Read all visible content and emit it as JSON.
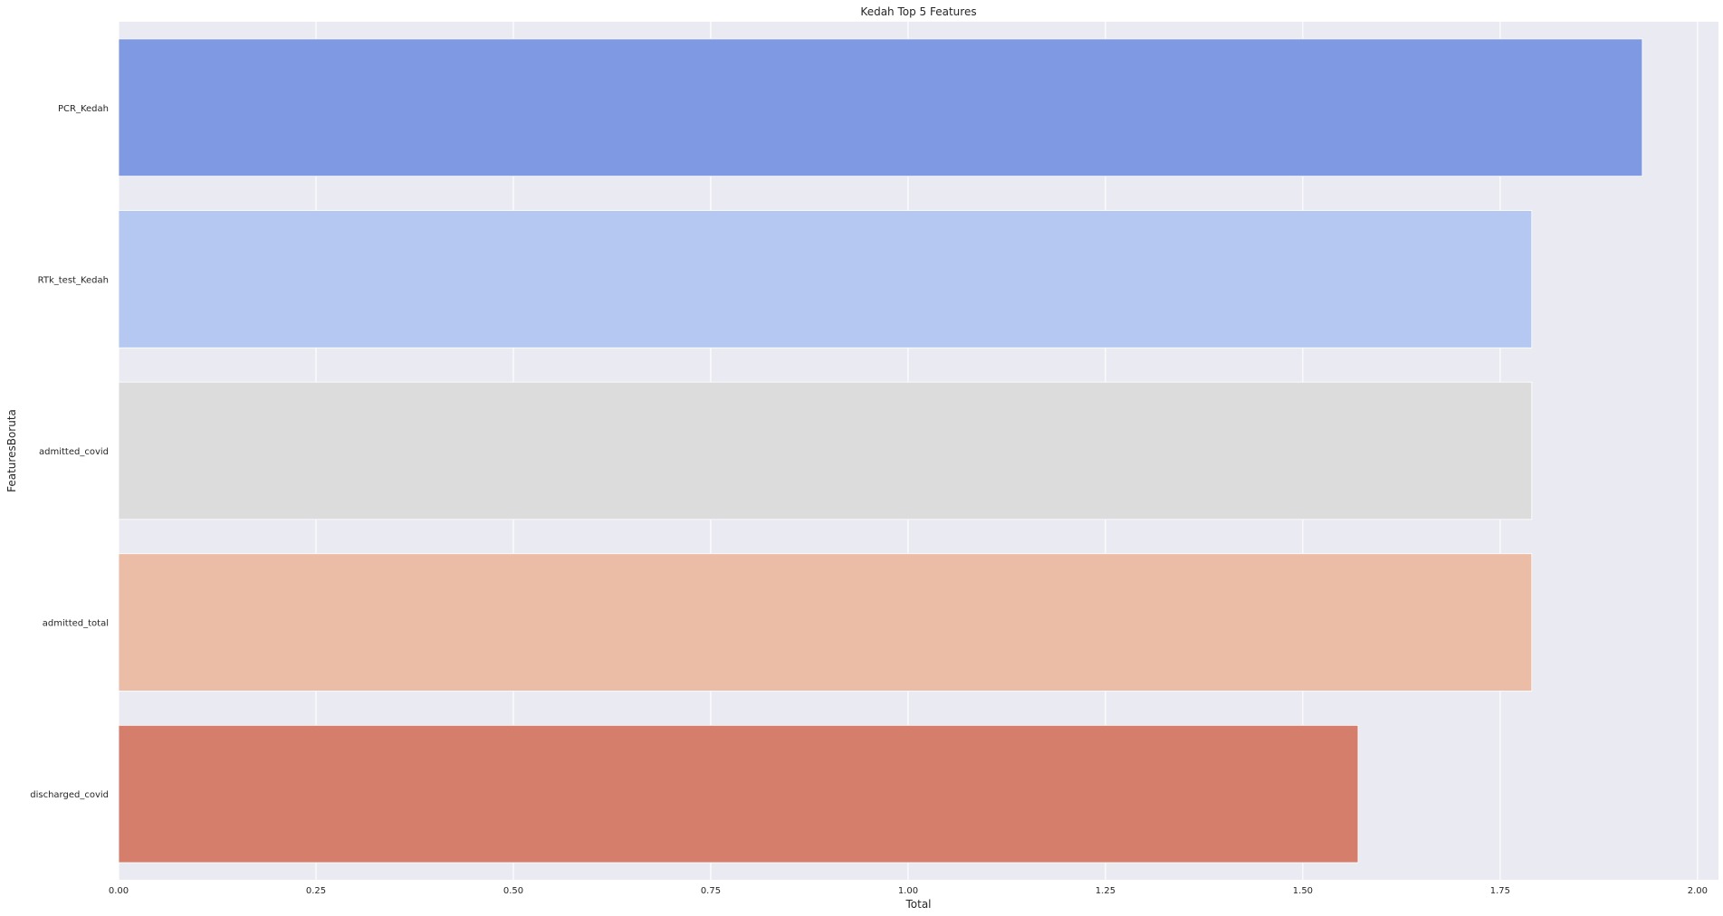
{
  "chart_data": {
    "type": "bar",
    "orientation": "horizontal",
    "title": "Kedah Top 5 Features",
    "xlabel": "Total",
    "ylabel": "FeaturesBoruta",
    "categories": [
      "PCR_Kedah",
      "RTk_test_Kedah",
      "admitted_covid",
      "admitted_total",
      "discharged_covid"
    ],
    "values": [
      1.93,
      1.79,
      1.79,
      1.79,
      1.57
    ],
    "bar_colors": [
      "#7f99e2",
      "#b5c8f2",
      "#dcdcdc",
      "#ebbca6",
      "#d57e6c"
    ],
    "xlim": [
      0,
      2.0265
    ],
    "xticks": [
      0.0,
      0.25,
      0.5,
      0.75,
      1.0,
      1.25,
      1.5,
      1.75,
      2.0
    ],
    "xtick_labels": [
      "0.00",
      "0.25",
      "0.50",
      "0.75",
      "1.00",
      "1.25",
      "1.50",
      "1.75",
      "2.00"
    ],
    "grid": true,
    "background_color": "#eaeaf2",
    "grid_color": "#ffffff"
  }
}
